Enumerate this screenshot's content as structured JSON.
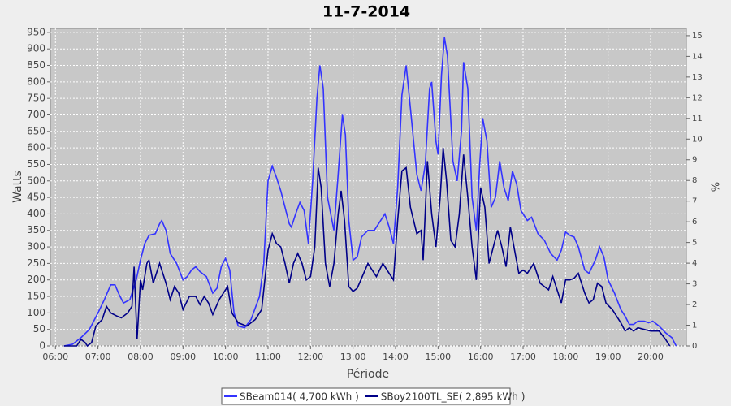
{
  "chart_data": {
    "type": "line",
    "title": "11-7-2014",
    "xlabel": "Période",
    "ylabel": "Watts",
    "y2label": "%",
    "xlim": [
      5.88,
      20.84
    ],
    "ylim": [
      0,
      962
    ],
    "y2lim": [
      0,
      15.35
    ],
    "grid": true,
    "legend": "bottom",
    "xticks": [
      {
        "value": 6,
        "label": "06:00"
      },
      {
        "value": 7,
        "label": "07:00"
      },
      {
        "value": 8,
        "label": "08:00"
      },
      {
        "value": 9,
        "label": "09:00"
      },
      {
        "value": 10,
        "label": "10:00"
      },
      {
        "value": 11,
        "label": "11:00"
      },
      {
        "value": 12,
        "label": "12:00"
      },
      {
        "value": 13,
        "label": "13:00"
      },
      {
        "value": 14,
        "label": "14:00"
      },
      {
        "value": 15,
        "label": "15:00"
      },
      {
        "value": 16,
        "label": "16:00"
      },
      {
        "value": 17,
        "label": "17:00"
      },
      {
        "value": 18,
        "label": "18:00"
      },
      {
        "value": 19,
        "label": "19:00"
      },
      {
        "value": 20,
        "label": "20:00"
      }
    ],
    "yticks": [
      0,
      50,
      100,
      150,
      200,
      250,
      300,
      350,
      400,
      450,
      500,
      550,
      600,
      650,
      700,
      750,
      800,
      850,
      900,
      950
    ],
    "y2ticks": [
      0,
      1,
      2,
      3,
      4,
      5,
      6,
      7,
      8,
      9,
      10,
      11,
      12,
      13,
      14,
      15
    ],
    "series": [
      {
        "name": "SBeam014( 4,700 kWh )",
        "color": "#3333ff",
        "x": [
          6.2,
          6.4,
          6.6,
          6.8,
          7.0,
          7.15,
          7.3,
          7.4,
          7.5,
          7.6,
          7.75,
          7.9,
          8.0,
          8.1,
          8.2,
          8.35,
          8.45,
          8.5,
          8.6,
          8.7,
          8.85,
          9.0,
          9.1,
          9.2,
          9.3,
          9.4,
          9.55,
          9.7,
          9.8,
          9.9,
          10.0,
          10.1,
          10.2,
          10.3,
          10.45,
          10.6,
          10.8,
          10.9,
          11.0,
          11.1,
          11.2,
          11.3,
          11.4,
          11.5,
          11.55,
          11.65,
          11.75,
          11.85,
          11.95,
          12.05,
          12.15,
          12.22,
          12.3,
          12.4,
          12.55,
          12.65,
          12.75,
          12.82,
          12.9,
          13.0,
          13.1,
          13.2,
          13.35,
          13.5,
          13.65,
          13.75,
          13.85,
          13.95,
          14.05,
          14.15,
          14.25,
          14.35,
          14.5,
          14.6,
          14.7,
          14.8,
          14.85,
          14.95,
          15.0,
          15.08,
          15.15,
          15.22,
          15.35,
          15.45,
          15.55,
          15.6,
          15.7,
          15.8,
          15.9,
          15.98,
          16.05,
          16.15,
          16.25,
          16.35,
          16.45,
          16.55,
          16.65,
          16.75,
          16.85,
          16.95,
          17.1,
          17.2,
          17.35,
          17.5,
          17.65,
          17.8,
          17.9,
          18.0,
          18.1,
          18.2,
          18.3,
          18.45,
          18.55,
          18.7,
          18.8,
          18.9,
          19.0,
          19.15,
          19.3,
          19.4,
          19.5,
          19.6,
          19.7,
          19.85,
          19.95,
          20.05,
          20.2,
          20.35,
          20.5,
          20.6
        ],
        "values": [
          0,
          5,
          25,
          50,
          100,
          140,
          185,
          185,
          155,
          130,
          140,
          200,
          260,
          310,
          335,
          340,
          370,
          380,
          350,
          280,
          250,
          200,
          210,
          230,
          240,
          225,
          210,
          160,
          175,
          240,
          265,
          230,
          100,
          60,
          55,
          80,
          150,
          250,
          500,
          545,
          510,
          470,
          420,
          370,
          360,
          400,
          435,
          410,
          310,
          500,
          750,
          850,
          780,
          450,
          350,
          520,
          700,
          640,
          380,
          260,
          270,
          330,
          350,
          350,
          380,
          400,
          360,
          310,
          480,
          760,
          850,
          720,
          520,
          470,
          550,
          780,
          800,
          620,
          580,
          820,
          935,
          880,
          560,
          500,
          650,
          860,
          780,
          450,
          350,
          550,
          690,
          620,
          420,
          450,
          560,
          480,
          440,
          530,
          490,
          410,
          380,
          390,
          340,
          320,
          280,
          260,
          290,
          345,
          335,
          330,
          300,
          230,
          220,
          260,
          300,
          270,
          200,
          160,
          110,
          90,
          65,
          65,
          75,
          75,
          70,
          75,
          60,
          40,
          25,
          0
        ]
      },
      {
        "name": "SBoy2100TL_SE( 2,895 kWh )",
        "color": "#000088",
        "x": [
          6.2,
          6.5,
          6.6,
          6.7,
          6.75,
          6.85,
          6.95,
          7.1,
          7.2,
          7.3,
          7.45,
          7.55,
          7.7,
          7.8,
          7.85,
          7.92,
          8.0,
          8.05,
          8.15,
          8.2,
          8.3,
          8.45,
          8.6,
          8.7,
          8.8,
          8.9,
          9.0,
          9.15,
          9.3,
          9.4,
          9.5,
          9.6,
          9.7,
          9.85,
          9.95,
          10.05,
          10.15,
          10.3,
          10.5,
          10.7,
          10.85,
          11.0,
          11.1,
          11.2,
          11.3,
          11.4,
          11.5,
          11.6,
          11.7,
          11.8,
          11.9,
          12.0,
          12.1,
          12.18,
          12.25,
          12.35,
          12.45,
          12.55,
          12.65,
          12.72,
          12.8,
          12.9,
          13.0,
          13.1,
          13.25,
          13.35,
          13.45,
          13.55,
          13.7,
          13.8,
          13.95,
          14.05,
          14.15,
          14.25,
          14.35,
          14.5,
          14.6,
          14.65,
          14.75,
          14.85,
          14.95,
          15.05,
          15.12,
          15.2,
          15.3,
          15.4,
          15.5,
          15.6,
          15.7,
          15.8,
          15.9,
          16.0,
          16.1,
          16.2,
          16.3,
          16.4,
          16.5,
          16.6,
          16.7,
          16.8,
          16.9,
          17.0,
          17.1,
          17.25,
          17.4,
          17.5,
          17.6,
          17.7,
          17.8,
          17.9,
          18.0,
          18.1,
          18.2,
          18.3,
          18.45,
          18.55,
          18.65,
          18.75,
          18.85,
          18.95,
          19.1,
          19.2,
          19.3,
          19.4,
          19.5,
          19.6,
          19.7,
          19.85,
          20.0,
          20.2,
          20.35,
          20.45
        ],
        "values": [
          0,
          0,
          20,
          10,
          0,
          10,
          60,
          80,
          120,
          100,
          90,
          85,
          100,
          120,
          240,
          20,
          200,
          170,
          250,
          260,
          190,
          250,
          190,
          140,
          180,
          160,
          110,
          150,
          150,
          125,
          150,
          130,
          95,
          140,
          160,
          180,
          100,
          70,
          60,
          80,
          110,
          290,
          340,
          310,
          300,
          250,
          190,
          250,
          280,
          250,
          200,
          210,
          300,
          540,
          480,
          250,
          180,
          250,
          400,
          470,
          380,
          180,
          165,
          175,
          220,
          250,
          230,
          210,
          250,
          230,
          200,
          380,
          530,
          540,
          420,
          340,
          350,
          260,
          560,
          400,
          300,
          450,
          600,
          500,
          320,
          300,
          400,
          580,
          450,
          300,
          200,
          480,
          420,
          250,
          300,
          350,
          300,
          240,
          360,
          290,
          220,
          230,
          220,
          250,
          190,
          180,
          170,
          210,
          170,
          130,
          200,
          200,
          205,
          220,
          160,
          130,
          140,
          190,
          180,
          130,
          110,
          90,
          70,
          45,
          55,
          45,
          55,
          50,
          45,
          45,
          20,
          0
        ]
      }
    ]
  }
}
